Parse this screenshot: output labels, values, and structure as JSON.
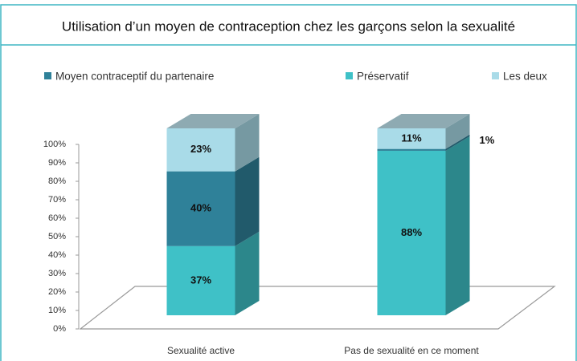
{
  "chart_data": {
    "type": "bar3d_stacked",
    "title": "Utilisation d’un moyen de contraception chez les garçons selon la sexualité",
    "categories": [
      "Sexualité active",
      "Pas de sexualité en ce moment"
    ],
    "series": [
      {
        "name": "Moyen contraceptif du partenaire",
        "color": "#2f8199",
        "values": [
          40,
          1
        ],
        "value_labels": [
          "40%",
          "1%"
        ]
      },
      {
        "name": "Préservatif",
        "color": "#3fc1c7",
        "values": [
          37,
          88
        ],
        "value_labels": [
          "37%",
          "88%"
        ]
      },
      {
        "name": "Les deux",
        "color": "#a9dbe8",
        "values": [
          23,
          11
        ],
        "value_labels": [
          "23%",
          "11%"
        ]
      }
    ],
    "ylim": [
      0,
      100
    ],
    "yticks": [
      {
        "value": 0,
        "label": "0%"
      },
      {
        "value": 10,
        "label": "10%"
      },
      {
        "value": 20,
        "label": "20%"
      },
      {
        "value": 30,
        "label": "30%"
      },
      {
        "value": 40,
        "label": "40%"
      },
      {
        "value": 50,
        "label": "50%"
      },
      {
        "value": 60,
        "label": "60%"
      },
      {
        "value": 70,
        "label": "70%"
      },
      {
        "value": 80,
        "label": "80%"
      },
      {
        "value": 90,
        "label": "90%"
      },
      {
        "value": 100,
        "label": "100%"
      }
    ]
  }
}
